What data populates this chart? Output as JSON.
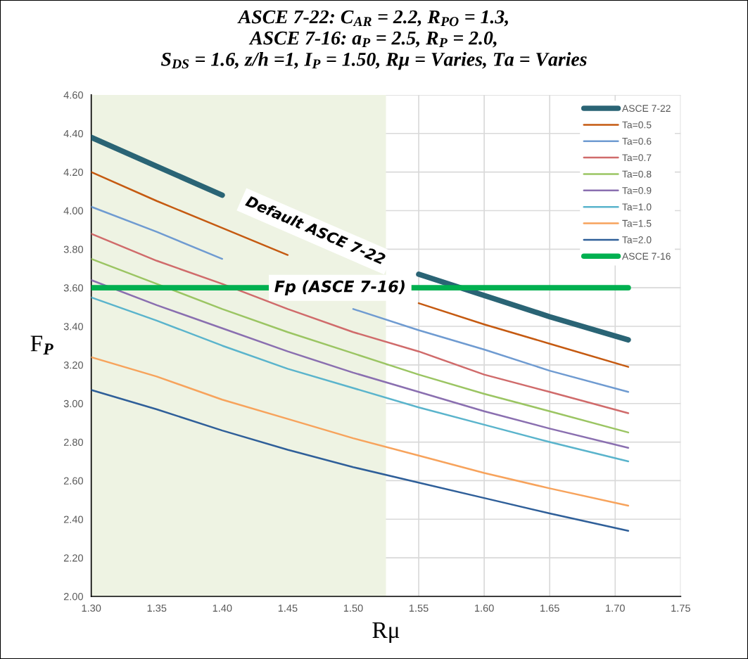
{
  "chart_data": {
    "type": "line",
    "title": "ASCE 7-22: C$_{AR}$ = 2.2, R$_{PO}$ = 1.3,\nASCE 7-16: a$_{P}$ = 2.5, R$_{P}$ = 2.0,\nS$_{DS}$ = 1.6, z/h =1, I$_{P}$ = 1.50, Rμ = Varies, Ta = Varies",
    "xlabel": "Rμ",
    "ylabel": "F$_{P}$",
    "x": [
      1.3,
      1.35,
      1.4,
      1.45,
      1.5,
      1.55,
      1.6,
      1.65,
      1.71
    ],
    "series": [
      {
        "name": "ASCE 7-22",
        "color": "#2a6475",
        "values": [
          4.38,
          4.23,
          4.08,
          null,
          null,
          3.67,
          3.56,
          3.45,
          3.33
        ]
      },
      {
        "name": "Ta=0.5",
        "color": "#c55a11",
        "values": [
          4.2,
          4.05,
          3.91,
          3.77,
          null,
          3.52,
          3.41,
          3.31,
          3.19
        ]
      },
      {
        "name": "Ta=0.6",
        "color": "#6f9bd1",
        "values": [
          4.02,
          3.89,
          3.75,
          null,
          3.49,
          3.38,
          3.28,
          3.17,
          3.06
        ]
      },
      {
        "name": "Ta=0.7",
        "color": "#d06b6b",
        "values": [
          3.88,
          3.74,
          3.62,
          3.49,
          3.37,
          3.27,
          3.15,
          3.06,
          2.95
        ]
      },
      {
        "name": "Ta=0.8",
        "color": "#9bc563",
        "values": [
          3.75,
          3.62,
          3.49,
          3.37,
          3.26,
          3.15,
          3.05,
          2.96,
          2.85
        ]
      },
      {
        "name": "Ta=0.9",
        "color": "#8a6fb0",
        "values": [
          3.64,
          3.51,
          3.39,
          3.27,
          3.16,
          3.06,
          2.96,
          2.87,
          2.77
        ]
      },
      {
        "name": "Ta=1.0",
        "color": "#5ab4cc",
        "values": [
          3.55,
          3.43,
          3.3,
          3.18,
          3.08,
          2.98,
          2.89,
          2.8,
          2.7
        ]
      },
      {
        "name": "Ta=1.5",
        "color": "#f7a35c",
        "values": [
          3.24,
          3.14,
          3.02,
          2.92,
          2.82,
          2.73,
          2.64,
          2.56,
          2.47
        ]
      },
      {
        "name": "Ta=2.0",
        "color": "#2f5f99",
        "values": [
          3.07,
          2.97,
          2.86,
          2.76,
          2.67,
          2.59,
          2.51,
          2.43,
          2.34
        ]
      },
      {
        "name": "ASCE 7-16",
        "color": "#00b050",
        "x": [
          1.3,
          1.71
        ],
        "values": [
          3.6,
          3.6
        ]
      }
    ],
    "bands": [
      {
        "axis": "x",
        "from": 1.3,
        "to": 1.525,
        "color": "#eef3e3"
      }
    ],
    "annotations": [
      "Default ASCE 7-22",
      {
        "text": "Fp (ASCE 7-16)",
        "x": 1.49,
        "y": 3.6
      }
    ],
    "xlim": [
      1.3,
      1.75
    ],
    "xticks": [
      {
        "value": 1.3,
        "label": "1.30"
      },
      {
        "value": 1.35,
        "label": "1.35"
      },
      {
        "value": 1.4,
        "label": "1.40"
      },
      {
        "value": 1.45,
        "label": "1.45"
      },
      {
        "value": 1.5,
        "label": "1.50"
      },
      {
        "value": 1.55,
        "label": "1.55"
      },
      {
        "value": 1.6,
        "label": "1.60"
      },
      {
        "value": 1.65,
        "label": "1.65"
      },
      {
        "value": 1.7,
        "label": "1.70"
      },
      {
        "value": 1.75,
        "label": "1.75"
      }
    ],
    "ylim": [
      2.0,
      4.6
    ],
    "yticks": [
      {
        "value": 2.0,
        "label": "2.00"
      },
      {
        "value": 2.2,
        "label": "2.20"
      },
      {
        "value": 2.4,
        "label": "2.40"
      },
      {
        "value": 2.6,
        "label": "2.60"
      },
      {
        "value": 2.8,
        "label": "2.80"
      },
      {
        "value": 3.0,
        "label": "3.00"
      },
      {
        "value": 3.2,
        "label": "3.20"
      },
      {
        "value": 3.4,
        "label": "3.40"
      },
      {
        "value": 3.6,
        "label": "3.60"
      },
      {
        "value": 3.8,
        "label": "3.80"
      },
      {
        "value": 4.0,
        "label": "4.00"
      },
      {
        "value": 4.2,
        "label": "4.20"
      },
      {
        "value": 4.4,
        "label": "4.40"
      },
      {
        "value": 4.6,
        "label": "4.60"
      }
    ],
    "grid": true,
    "legend": "top right",
    "marker": "none",
    "line_style": "solid"
  }
}
